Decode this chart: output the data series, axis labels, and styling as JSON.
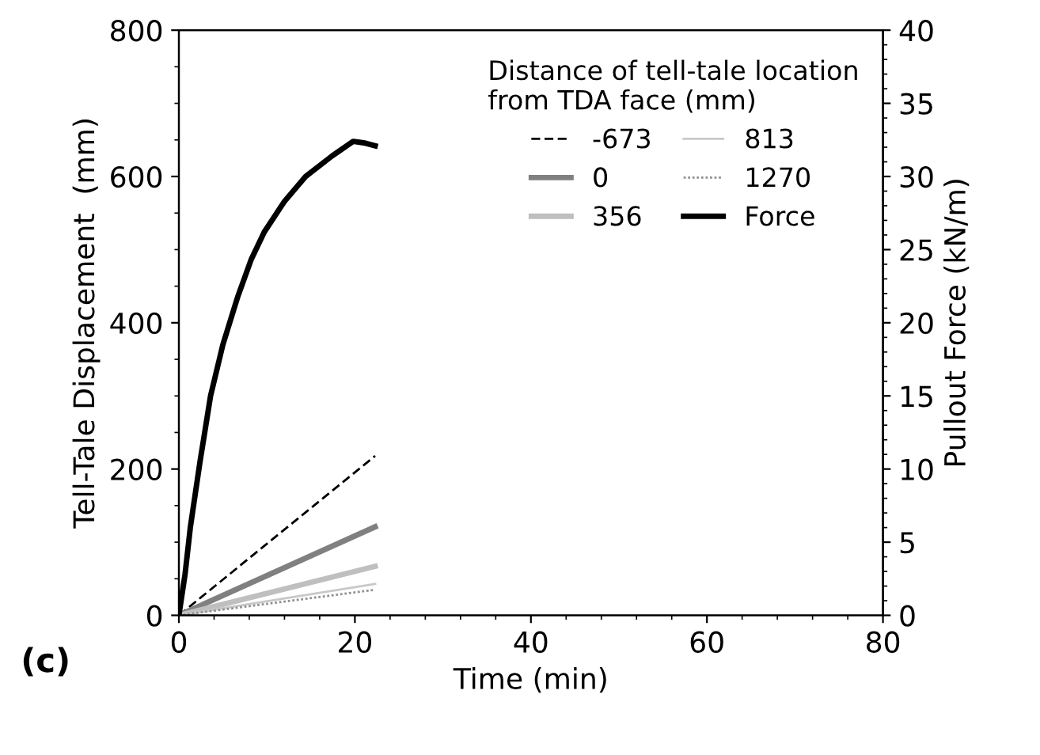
{
  "chart_data": {
    "type": "line",
    "xlabel": "Time (min)",
    "ylabel": "Tell-Tale Displacement  (mm)",
    "y2label": "Pullout Force (kN/m)",
    "legend_title": "Distance of tell-tale location\nfrom TDA face (mm)",
    "legend": "top right",
    "grid": false,
    "marker": "none",
    "xlim": [
      0,
      80
    ],
    "xticks": [
      0,
      20,
      40,
      60,
      80
    ],
    "ylim": [
      0,
      800
    ],
    "yticks": [
      0,
      200,
      400,
      600,
      800
    ],
    "y2lim": [
      0,
      40
    ],
    "y2ticks": [
      0,
      5,
      10,
      15,
      20,
      25,
      30,
      35,
      40
    ],
    "annotations": [
      "(c)"
    ],
    "series": [
      {
        "name": "-673",
        "color": "#000000",
        "line_style": "dashed",
        "x": [
          0,
          22.3
        ],
        "values": [
          0,
          218
        ]
      },
      {
        "name": "0",
        "color": "#808080",
        "line_style": "solid",
        "x": [
          0,
          22.3
        ],
        "values": [
          0,
          121
        ]
      },
      {
        "name": "356",
        "color": "#bfbfbf",
        "line_style": "solid",
        "x": [
          0,
          22.3
        ],
        "values": [
          0,
          67
        ]
      },
      {
        "name": "813",
        "color": "#c8c8c8",
        "line_style": "solid",
        "x": [
          0,
          22.3
        ],
        "values": [
          0,
          43
        ]
      },
      {
        "name": "1270",
        "color": "#909090",
        "line_style": "dotted",
        "x": [
          0,
          22.3
        ],
        "values": [
          0,
          35
        ]
      },
      {
        "name": "Force",
        "color": "#000000",
        "line_style": "solid",
        "axis": "y2",
        "x": [
          0,
          0.7,
          1.3,
          2.4,
          3.6,
          5.0,
          6.7,
          8.2,
          9.7,
          12.0,
          14.4,
          17.4,
          19.8,
          21.0,
          22.3
        ],
        "values": [
          0,
          2.8,
          6.0,
          10.5,
          15.0,
          18.5,
          21.8,
          24.3,
          26.2,
          28.3,
          30.0,
          31.4,
          32.4,
          32.3,
          32.1
        ]
      }
    ]
  }
}
